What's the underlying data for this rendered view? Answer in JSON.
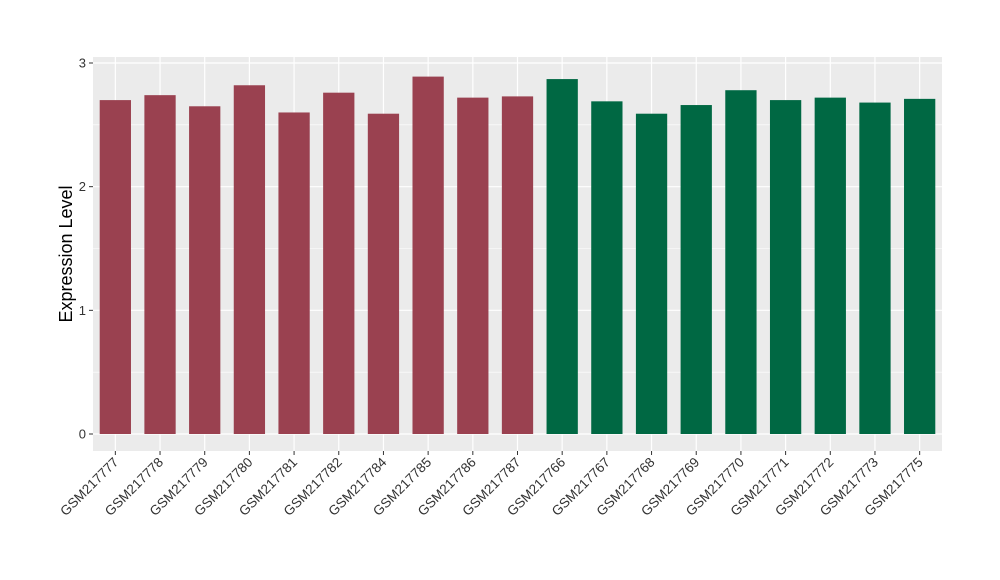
{
  "chart_data": {
    "type": "bar",
    "title": "",
    "xlabel": "",
    "ylabel": "Expression Level",
    "ylim": [
      0,
      3
    ],
    "yticks": [
      "0",
      "1",
      "2",
      "3"
    ],
    "grid": true,
    "legend": "none",
    "categories": [
      "GSM217777",
      "GSM217778",
      "GSM217779",
      "GSM217780",
      "GSM217781",
      "GSM217782",
      "GSM217784",
      "GSM217785",
      "GSM217786",
      "GSM217787",
      "GSM217766",
      "GSM217767",
      "GSM217768",
      "GSM217769",
      "GSM217770",
      "GSM217771",
      "GSM217772",
      "GSM217773",
      "GSM217775"
    ],
    "values": [
      2.7,
      2.74,
      2.65,
      2.82,
      2.6,
      2.76,
      2.59,
      2.89,
      2.72,
      2.73,
      2.87,
      2.69,
      2.59,
      2.66,
      2.78,
      2.7,
      2.72,
      2.68,
      2.71
    ],
    "group_sizes": [
      10,
      9
    ],
    "group_colors": [
      "#9a4150",
      "#006843"
    ]
  },
  "colors": {
    "panel_background": "#ebebeb",
    "grid_line": "#ffffff"
  }
}
